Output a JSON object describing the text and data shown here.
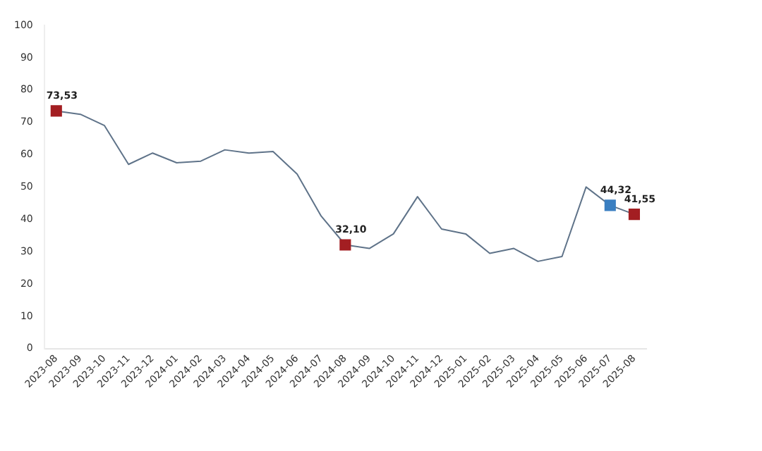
{
  "chart_data": {
    "type": "line",
    "categories": [
      "2023-08",
      "2023-09",
      "2023-10",
      "2023-11",
      "2023-12",
      "2024-01",
      "2024-02",
      "2024-03",
      "2024-04",
      "2024-05",
      "2024-06",
      "2024-07",
      "2024-08",
      "2024-09",
      "2024-10",
      "2024-11",
      "2024-12",
      "2025-01",
      "2025-02",
      "2025-03",
      "2025-04",
      "2025-05",
      "2025-06",
      "2025-07",
      "2025-08"
    ],
    "series": [
      {
        "color": "#5f7389",
        "marker": "none",
        "values": [
          73.53,
          72.5,
          69,
          57,
          60.5,
          57.5,
          58,
          61.5,
          60.5,
          61,
          54,
          41,
          32.1,
          31,
          35.5,
          47,
          37,
          35.5,
          29.5,
          31,
          27,
          28.5,
          50,
          44.32,
          41.55
        ]
      },
      {
        "type": "scatter",
        "marker": "square",
        "colors": [
          "#a31e22",
          null,
          null,
          null,
          null,
          null,
          null,
          null,
          null,
          null,
          null,
          null,
          "#a31e22",
          null,
          null,
          null,
          null,
          null,
          null,
          null,
          null,
          null,
          null,
          "#3a7fc1",
          "#a31e22"
        ],
        "values": [
          73.53,
          null,
          null,
          null,
          null,
          null,
          null,
          null,
          null,
          null,
          null,
          null,
          32.1,
          null,
          null,
          null,
          null,
          null,
          null,
          null,
          null,
          null,
          null,
          44.32,
          41.55
        ],
        "value_labels": [
          "73,53",
          null,
          null,
          null,
          null,
          null,
          null,
          null,
          null,
          null,
          null,
          null,
          "32,10",
          null,
          null,
          null,
          null,
          null,
          null,
          null,
          null,
          null,
          null,
          "44,32",
          "41,55"
        ]
      }
    ],
    "ylim": [
      0,
      100
    ],
    "yticks": [
      0,
      10,
      20,
      30,
      40,
      50,
      60,
      70,
      80,
      90,
      100
    ],
    "grid": false,
    "legend": false
  }
}
